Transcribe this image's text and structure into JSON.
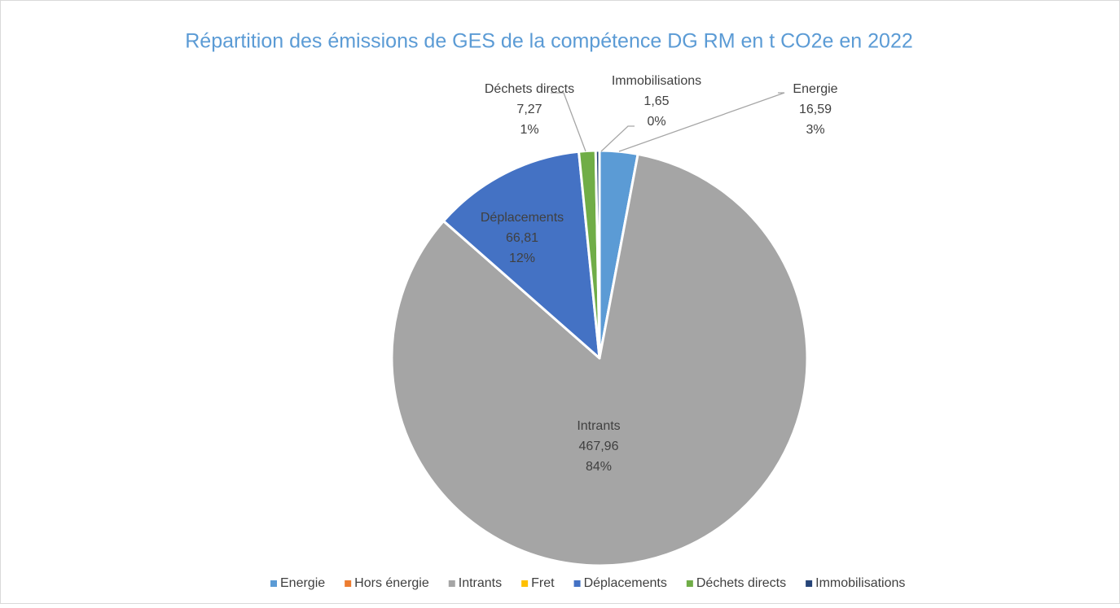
{
  "chart_data": {
    "type": "pie",
    "title": "Répartition des émissions de GES de la compétence DG RM en t CO2e en 2022",
    "categories": [
      "Energie",
      "Hors énergie",
      "Intrants",
      "Fret",
      "Déplacements",
      "Déchets directs",
      "Immobilisations"
    ],
    "values": [
      16.59,
      0,
      467.96,
      0,
      66.81,
      7.27,
      1.65
    ],
    "value_labels": [
      "16,59",
      null,
      "467,96",
      null,
      "66,81",
      "7,27",
      "1,65"
    ],
    "percent_labels": [
      "3%",
      null,
      "84%",
      null,
      "12%",
      "1%",
      "0%"
    ],
    "colors": [
      "#5b9bd5",
      "#ed7d31",
      "#a5a5a5",
      "#ffc000",
      "#4472c4",
      "#70ad47",
      "#264478"
    ],
    "legend": "bottom"
  }
}
